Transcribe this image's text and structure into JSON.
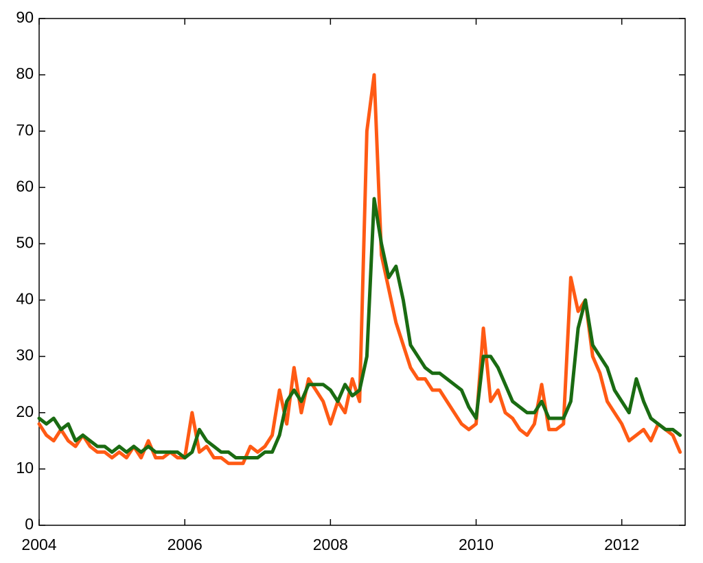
{
  "chart_data": {
    "type": "line",
    "x": [
      2004.0,
      2004.1,
      2004.2,
      2004.3,
      2004.4,
      2004.5,
      2004.6,
      2004.7,
      2004.8,
      2004.9,
      2005.0,
      2005.1,
      2005.2,
      2005.3,
      2005.4,
      2005.5,
      2005.6,
      2005.7,
      2005.8,
      2005.9,
      2006.0,
      2006.1,
      2006.2,
      2006.3,
      2006.4,
      2006.5,
      2006.6,
      2006.7,
      2006.8,
      2006.9,
      2007.0,
      2007.1,
      2007.2,
      2007.3,
      2007.4,
      2007.5,
      2007.6,
      2007.7,
      2007.8,
      2007.9,
      2008.0,
      2008.1,
      2008.2,
      2008.3,
      2008.4,
      2008.5,
      2008.6,
      2008.7,
      2008.8,
      2008.9,
      2009.0,
      2009.1,
      2009.2,
      2009.3,
      2009.4,
      2009.5,
      2009.6,
      2009.7,
      2009.8,
      2009.9,
      2010.0,
      2010.1,
      2010.2,
      2010.3,
      2010.4,
      2010.5,
      2010.6,
      2010.7,
      2010.8,
      2010.9,
      2011.0,
      2011.1,
      2011.2,
      2011.3,
      2011.4,
      2011.5,
      2011.6,
      2011.7,
      2011.8,
      2011.9,
      2012.0,
      2012.1,
      2012.2,
      2012.3,
      2012.4,
      2012.5,
      2012.6,
      2012.7,
      2012.8
    ],
    "series": [
      {
        "color": "#ff5a14",
        "values": [
          18,
          16,
          15,
          17,
          15,
          14,
          16,
          14,
          13,
          13,
          12,
          13,
          12,
          14,
          12,
          15,
          12,
          12,
          13,
          12,
          12,
          20,
          13,
          14,
          12,
          12,
          11,
          11,
          11,
          14,
          13,
          14,
          16,
          24,
          18,
          28,
          20,
          26,
          24,
          22,
          18,
          22,
          20,
          26,
          22,
          70,
          80,
          48,
          42,
          36,
          32,
          28,
          26,
          26,
          24,
          24,
          22,
          20,
          18,
          17,
          18,
          35,
          22,
          24,
          20,
          19,
          17,
          16,
          18,
          25,
          17,
          17,
          18,
          44,
          38,
          40,
          30,
          27,
          22,
          20,
          18,
          15,
          16,
          17,
          15,
          18,
          17,
          16,
          13
        ]
      },
      {
        "color": "#1a6b12",
        "values": [
          19,
          18,
          19,
          17,
          18,
          15,
          16,
          15,
          14,
          14,
          13,
          14,
          13,
          14,
          13,
          14,
          13,
          13,
          13,
          13,
          12,
          13,
          17,
          15,
          14,
          13,
          13,
          12,
          12,
          12,
          12,
          13,
          13,
          16,
          22,
          24,
          22,
          25,
          25,
          25,
          24,
          22,
          25,
          23,
          24,
          30,
          58,
          50,
          44,
          46,
          40,
          32,
          30,
          28,
          27,
          27,
          26,
          25,
          24,
          21,
          19,
          30,
          30,
          28,
          25,
          22,
          21,
          20,
          20,
          22,
          19,
          19,
          19,
          22,
          35,
          40,
          32,
          30,
          28,
          24,
          22,
          20,
          26,
          22,
          19,
          18,
          17,
          17,
          16
        ]
      }
    ],
    "xlim": [
      2004,
      2012.87
    ],
    "xticks": [
      2004,
      2006,
      2008,
      2010,
      2012
    ],
    "ylim": [
      0,
      90
    ],
    "yticks": [
      0,
      10,
      20,
      30,
      40,
      50,
      60,
      70,
      80,
      90
    ],
    "grid": false
  }
}
